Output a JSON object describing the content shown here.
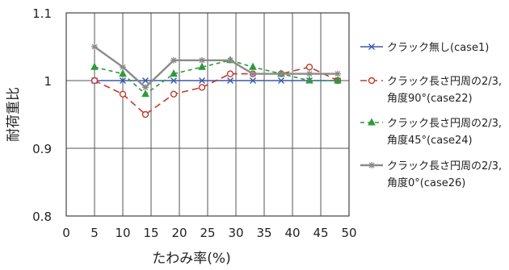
{
  "chart_data": {
    "type": "line",
    "title": "",
    "xlabel": "たわみ率(%)",
    "ylabel": "耐荷重比",
    "xlim": [
      0,
      50
    ],
    "ylim": [
      0.8,
      1.1
    ],
    "x_ticks": [
      "0",
      "5",
      "10",
      "15",
      "20",
      "25",
      "30",
      "35",
      "40",
      "45",
      "50"
    ],
    "y_ticks": [
      "0.8",
      "0.9",
      "1",
      "1.1"
    ],
    "grid": "vertical and horizontal at major ticks",
    "legend_position": "right",
    "series": [
      {
        "name": "クラック無し(case1)",
        "legend_lines": [
          "クラック無し(case1)"
        ],
        "color": "#3a5ba8",
        "dash": "solid",
        "marker": "x",
        "x": [
          5,
          10,
          14,
          19,
          24,
          29,
          33,
          38,
          43,
          48
        ],
        "y": [
          1.0,
          1.0,
          1.0,
          1.0,
          1.0,
          1.0,
          1.0,
          1.0,
          1.0,
          1.0
        ]
      },
      {
        "name": "クラック長さ円周の2/3,角度90°(case22)",
        "legend_lines": [
          "クラック長さ円周の2/3,",
          "角度90°(case22)"
        ],
        "color": "#c0392b",
        "dash": "long",
        "marker": "circle",
        "x": [
          5,
          10,
          14,
          19,
          24,
          29,
          33,
          38,
          43,
          48
        ],
        "y": [
          1.0,
          0.98,
          0.95,
          0.98,
          0.99,
          1.01,
          1.01,
          1.01,
          1.02,
          1.0
        ]
      },
      {
        "name": "クラック長さ円周の2/3,角度45°(case24)",
        "legend_lines": [
          "クラック長さ円周の2/3,",
          "角度45°(case24)"
        ],
        "color": "#2e9a3a",
        "dash": "short",
        "marker": "triangle",
        "x": [
          5,
          10,
          14,
          19,
          24,
          29,
          33,
          38,
          43,
          48
        ],
        "y": [
          1.02,
          1.01,
          0.98,
          1.01,
          1.02,
          1.03,
          1.02,
          1.01,
          1.0,
          1.0
        ]
      },
      {
        "name": "クラック長さ円周の2/3,角度0°(case26)",
        "legend_lines": [
          "クラック長さ円周の2/3,",
          "角度0°(case26)"
        ],
        "color": "#8a8a8a",
        "dash": "solid",
        "marker": "star",
        "x": [
          5,
          10,
          14,
          19,
          24,
          29,
          33,
          38,
          43,
          48
        ],
        "y": [
          1.05,
          1.02,
          0.99,
          1.03,
          1.03,
          1.03,
          1.01,
          1.01,
          1.01,
          1.01
        ]
      }
    ]
  }
}
